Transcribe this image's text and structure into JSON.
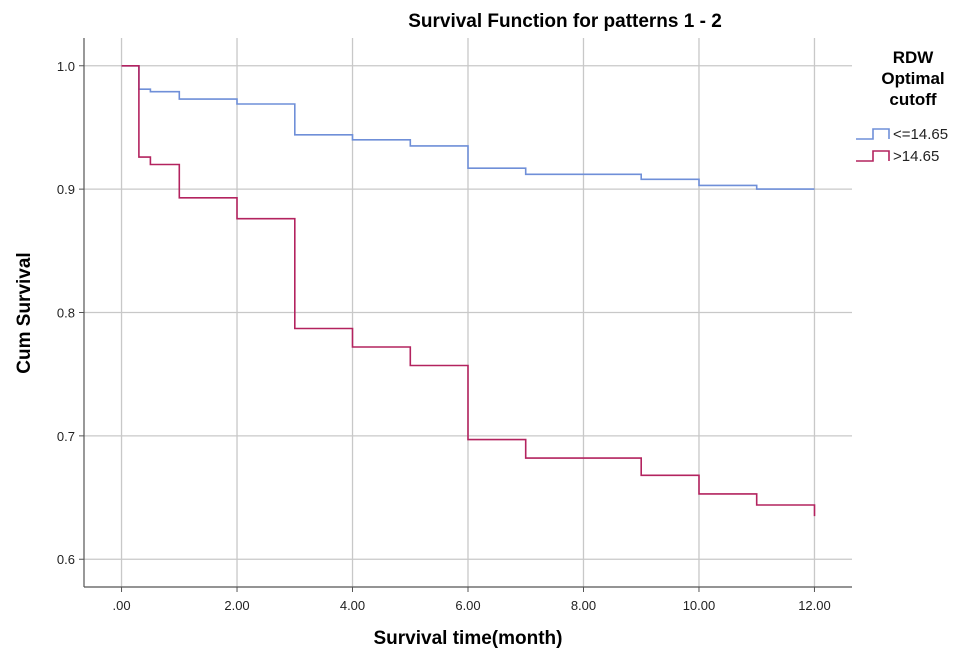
{
  "chart_data": {
    "type": "line",
    "title": "Survival Function for patterns 1 - 2",
    "xlabel": "Survival time(month)",
    "ylabel": "Cum Survival",
    "xlim": [
      -0.65,
      12.65
    ],
    "ylim": [
      0.5775,
      1.0225
    ],
    "xticks": [
      0,
      2,
      4,
      6,
      8,
      10,
      12
    ],
    "xtick_labels": [
      ".00",
      "2.00",
      "4.00",
      "6.00",
      "8.00",
      "10.00",
      "12.00"
    ],
    "yticks": [
      0.6,
      0.7,
      0.8,
      0.9,
      1.0
    ],
    "ytick_labels": [
      "0.6",
      "0.7",
      "0.8",
      "0.9",
      "1.0"
    ],
    "grid": true,
    "legend": {
      "title_lines": [
        "RDW",
        "Optimal",
        "cutoff"
      ],
      "placement": "right"
    },
    "series": [
      {
        "name": "<=14.65",
        "color": "#6f8fd8",
        "x": [
          0,
          0.3,
          0.5,
          1.0,
          2.0,
          3.0,
          4.0,
          5.0,
          6.0,
          7.0,
          9.0,
          10.0,
          11.0,
          12.0
        ],
        "y": [
          1.0,
          0.981,
          0.979,
          0.973,
          0.969,
          0.944,
          0.94,
          0.935,
          0.917,
          0.912,
          0.908,
          0.903,
          0.9,
          0.9
        ]
      },
      {
        "name": ">14.65",
        "color": "#b3235f",
        "x": [
          0,
          0.3,
          0.5,
          1.0,
          2.0,
          3.0,
          4.0,
          5.0,
          6.0,
          7.0,
          9.0,
          10.0,
          11.0,
          12.0
        ],
        "y": [
          1.0,
          0.926,
          0.92,
          0.893,
          0.876,
          0.787,
          0.772,
          0.757,
          0.697,
          0.682,
          0.668,
          0.653,
          0.644,
          0.635
        ]
      }
    ]
  }
}
